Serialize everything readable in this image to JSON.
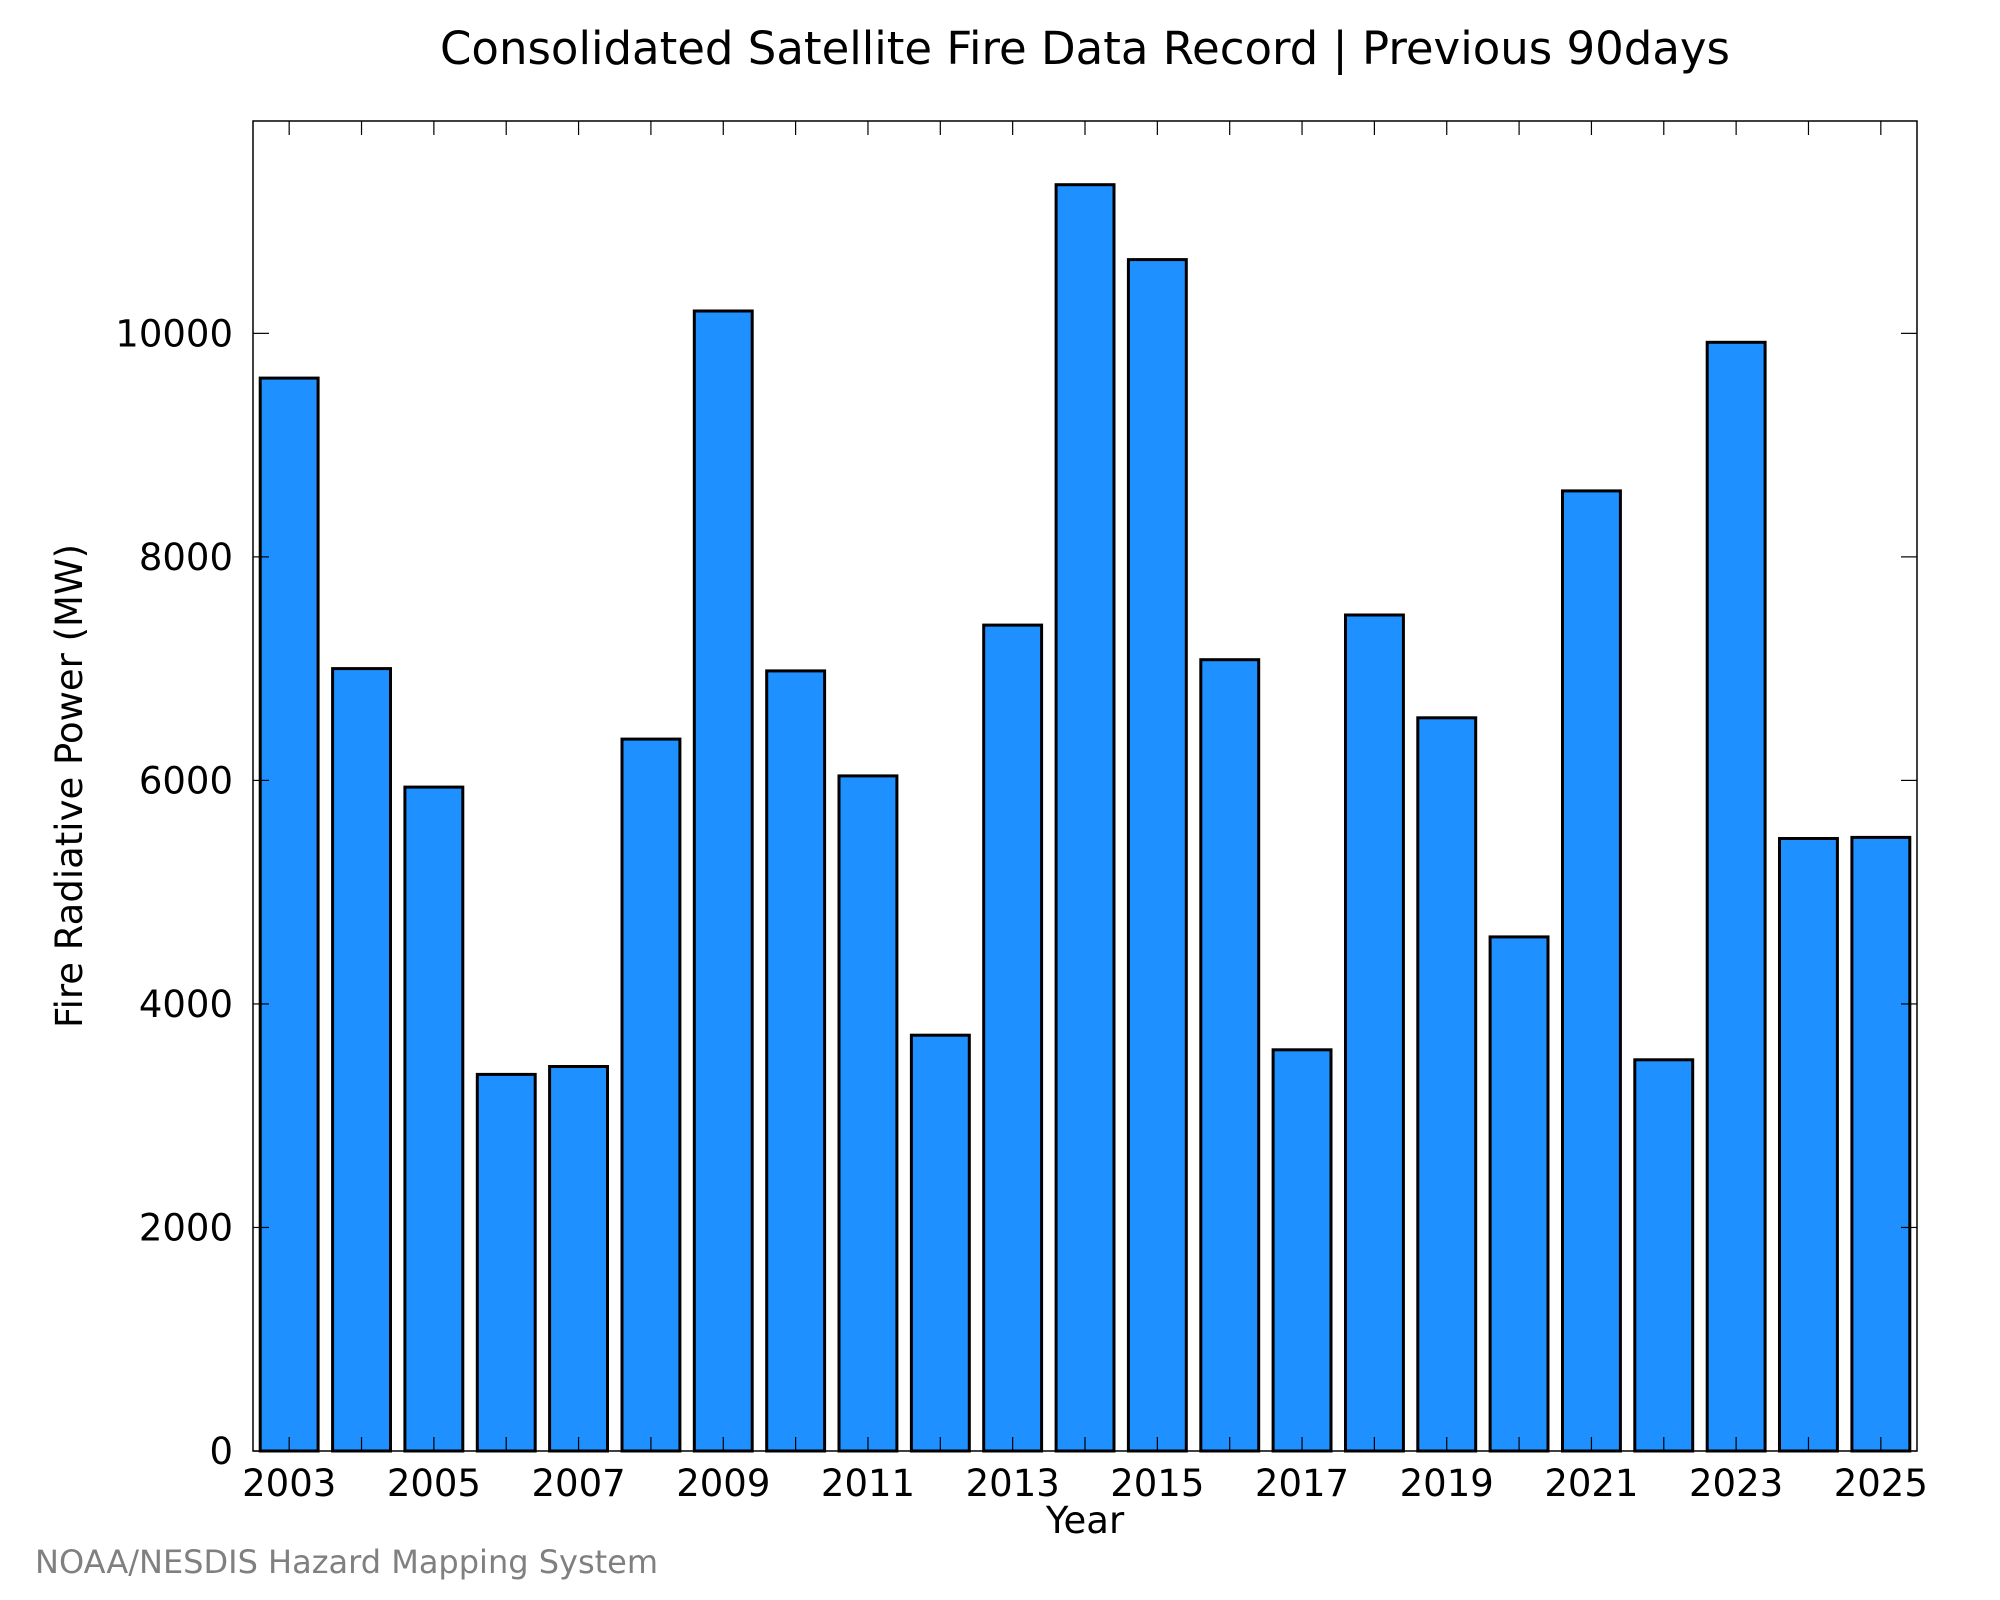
{
  "chart_data": {
    "type": "bar",
    "title": "Consolidated Satellite Fire Data Record | Previous 90days",
    "xlabel": "Year",
    "ylabel": "Fire Radiative Power (MW)",
    "categories": [
      "2003",
      "2004",
      "2005",
      "2006",
      "2007",
      "2008",
      "2009",
      "2010",
      "2011",
      "2012",
      "2013",
      "2014",
      "2015",
      "2016",
      "2017",
      "2018",
      "2019",
      "2020",
      "2021",
      "2022",
      "2023",
      "2024",
      "2025"
    ],
    "values": [
      9600,
      7000,
      5940,
      3370,
      3440,
      6370,
      10200,
      6980,
      6040,
      3720,
      7390,
      11330,
      10660,
      7080,
      3590,
      7480,
      6560,
      4600,
      8590,
      3500,
      9920,
      5480,
      5490
    ],
    "xtick_labels": [
      "2003",
      "2005",
      "2007",
      "2009",
      "2011",
      "2013",
      "2015",
      "2017",
      "2019",
      "2021",
      "2023",
      "2025"
    ],
    "yticks": [
      0,
      2000,
      4000,
      6000,
      8000,
      10000
    ],
    "ytick_labels": [
      "0",
      "2000",
      "4000",
      "6000",
      "8000",
      "10000"
    ],
    "ylim": [
      0,
      11900
    ],
    "grid": false,
    "bar_color": "#1E90FF",
    "bar_edge_color": "#000000"
  },
  "footer": {
    "credit": "NOAA/NESDIS Hazard Mapping System"
  }
}
